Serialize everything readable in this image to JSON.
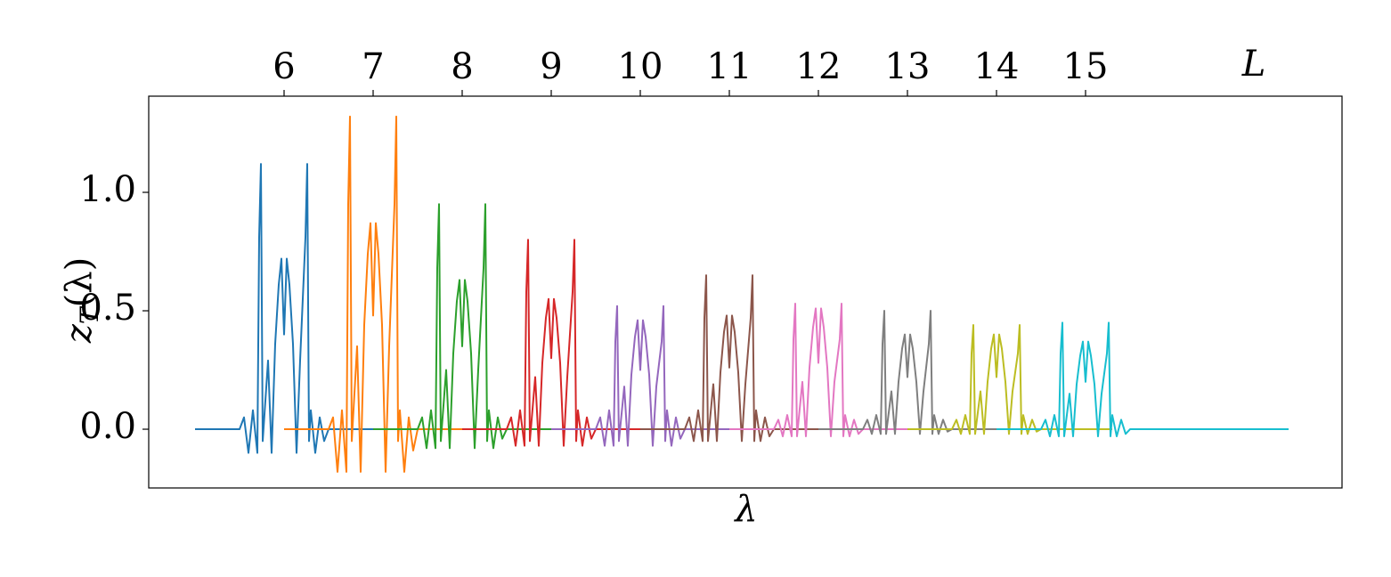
{
  "chart_data": {
    "type": "line",
    "x_label": "λ",
    "top_axis_label": "L",
    "ylabel": {
      "base": "z",
      "sub": "T",
      "rest": "(λ)"
    },
    "xlim": [
      4.48,
      17.88
    ],
    "xticks": [
      6,
      7,
      8,
      9,
      10,
      11,
      12,
      13,
      14,
      15
    ],
    "xtick_position": "top",
    "ylim": [
      -0.248,
      1.406
    ],
    "yticks": [
      {
        "value": 0,
        "label": "0.0"
      },
      0.5,
      {
        "value": 1,
        "label": "1.0"
      }
    ],
    "grid": false,
    "series": [
      {
        "color": "#1f77b4",
        "x": [
          5,
          5.5,
          5.55,
          5.6,
          5.65,
          5.7,
          5.72,
          5.74,
          5.76,
          5.82,
          5.86,
          5.9,
          5.94,
          5.97,
          6,
          6.03,
          6.06,
          6.1,
          6.14,
          6.18,
          6.24,
          6.26,
          6.28,
          6.3,
          6.35,
          6.4,
          6.45,
          6.5,
          7.3
        ],
        "values": [
          0,
          0,
          0.05,
          -0.1,
          0.08,
          -0.1,
          0.81,
          1.12,
          -0.05,
          0.29,
          -0.1,
          0.36,
          0.61,
          0.72,
          0.4,
          0.72,
          0.61,
          0.36,
          -0.1,
          0.29,
          0.81,
          1.12,
          -0.05,
          0.08,
          -0.1,
          0.05,
          -0.05,
          0,
          0
        ]
      },
      {
        "color": "#ff7f0e",
        "x": [
          6,
          6.5,
          6.55,
          6.6,
          6.65,
          6.7,
          6.72,
          6.74,
          6.76,
          6.82,
          6.86,
          6.9,
          6.94,
          6.97,
          7,
          7.03,
          7.06,
          7.1,
          7.14,
          7.18,
          7.24,
          7.26,
          7.28,
          7.3,
          7.35,
          7.4,
          7.45,
          7.5,
          8.3
        ],
        "values": [
          0,
          0,
          0.05,
          -0.18,
          0.08,
          -0.18,
          0.95,
          1.32,
          -0.05,
          0.35,
          -0.18,
          0.44,
          0.74,
          0.87,
          0.48,
          0.87,
          0.74,
          0.44,
          -0.18,
          0.35,
          0.95,
          1.32,
          -0.05,
          0.08,
          -0.18,
          0.05,
          -0.09,
          0,
          0
        ]
      },
      {
        "color": "#2ca02c",
        "x": [
          7,
          7.5,
          7.55,
          7.6,
          7.65,
          7.7,
          7.72,
          7.74,
          7.76,
          7.82,
          7.86,
          7.9,
          7.94,
          7.97,
          8,
          8.03,
          8.06,
          8.1,
          8.14,
          8.18,
          8.24,
          8.26,
          8.28,
          8.3,
          8.35,
          8.4,
          8.45,
          8.5,
          9.3
        ],
        "values": [
          0,
          0,
          0.05,
          -0.08,
          0.08,
          -0.08,
          0.68,
          0.95,
          -0.05,
          0.25,
          -0.08,
          0.32,
          0.54,
          0.63,
          0.35,
          0.63,
          0.54,
          0.32,
          -0.08,
          0.25,
          0.68,
          0.95,
          -0.05,
          0.08,
          -0.08,
          0.05,
          -0.04,
          0,
          0
        ]
      },
      {
        "color": "#d62728",
        "x": [
          8,
          8.5,
          8.55,
          8.6,
          8.65,
          8.7,
          8.72,
          8.74,
          8.76,
          8.82,
          8.86,
          8.9,
          8.94,
          8.97,
          9,
          9.03,
          9.06,
          9.1,
          9.14,
          9.18,
          9.24,
          9.26,
          9.28,
          9.3,
          9.35,
          9.4,
          9.45,
          9.5,
          10.3
        ],
        "values": [
          0,
          0,
          0.05,
          -0.07,
          0.08,
          -0.07,
          0.58,
          0.8,
          -0.05,
          0.22,
          -0.07,
          0.28,
          0.47,
          0.55,
          0.3,
          0.55,
          0.47,
          0.28,
          -0.07,
          0.22,
          0.58,
          0.8,
          -0.05,
          0.08,
          -0.07,
          0.05,
          -0.04,
          0,
          0
        ]
      },
      {
        "color": "#9467bd",
        "x": [
          9,
          9.5,
          9.55,
          9.6,
          9.65,
          9.7,
          9.72,
          9.74,
          9.76,
          9.82,
          9.86,
          9.9,
          9.94,
          9.97,
          10,
          10.03,
          10.06,
          10.1,
          10.14,
          10.18,
          10.24,
          10.26,
          10.28,
          10.3,
          10.35,
          10.4,
          10.45,
          10.5,
          11.3
        ],
        "values": [
          0,
          0,
          0.05,
          -0.07,
          0.08,
          -0.07,
          0.37,
          0.52,
          -0.05,
          0.18,
          -0.07,
          0.23,
          0.39,
          0.46,
          0.25,
          0.46,
          0.39,
          0.23,
          -0.07,
          0.18,
          0.37,
          0.52,
          -0.05,
          0.08,
          -0.07,
          0.05,
          -0.04,
          0,
          0
        ]
      },
      {
        "color": "#8c564b",
        "x": [
          10,
          10.5,
          10.55,
          10.6,
          10.65,
          10.7,
          10.72,
          10.74,
          10.76,
          10.82,
          10.86,
          10.9,
          10.94,
          10.97,
          11,
          11.03,
          11.06,
          11.1,
          11.14,
          11.18,
          11.24,
          11.26,
          11.28,
          11.3,
          11.35,
          11.4,
          11.45,
          11.5,
          12.3
        ],
        "values": [
          0,
          0,
          0.05,
          -0.05,
          0.08,
          -0.05,
          0.47,
          0.65,
          -0.05,
          0.19,
          -0.05,
          0.24,
          0.41,
          0.48,
          0.26,
          0.48,
          0.41,
          0.24,
          -0.05,
          0.19,
          0.47,
          0.65,
          -0.05,
          0.08,
          -0.05,
          0.05,
          -0.03,
          0,
          0
        ]
      },
      {
        "color": "#e377c2",
        "x": [
          11,
          11.5,
          11.55,
          11.6,
          11.65,
          11.7,
          11.72,
          11.74,
          11.76,
          11.82,
          11.86,
          11.9,
          11.94,
          11.97,
          12,
          12.03,
          12.06,
          12.1,
          12.14,
          12.18,
          12.24,
          12.26,
          12.28,
          12.3,
          12.35,
          12.4,
          12.45,
          12.5,
          13.3
        ],
        "values": [
          0,
          0,
          0.04,
          -0.03,
          0.06,
          -0.03,
          0.38,
          0.53,
          -0.03,
          0.2,
          -0.03,
          0.26,
          0.43,
          0.51,
          0.28,
          0.51,
          0.43,
          0.26,
          -0.03,
          0.2,
          0.38,
          0.53,
          -0.03,
          0.06,
          -0.03,
          0.04,
          -0.02,
          0,
          0
        ]
      },
      {
        "color": "#7f7f7f",
        "x": [
          12,
          12.5,
          12.55,
          12.6,
          12.65,
          12.7,
          12.72,
          12.74,
          12.76,
          12.82,
          12.86,
          12.9,
          12.94,
          12.97,
          13,
          13.03,
          13.06,
          13.1,
          13.14,
          13.18,
          13.24,
          13.26,
          13.28,
          13.3,
          13.35,
          13.4,
          13.45,
          13.5,
          14.3
        ],
        "values": [
          0,
          0,
          0.04,
          -0.02,
          0.06,
          -0.02,
          0.36,
          0.5,
          -0.02,
          0.16,
          -0.02,
          0.2,
          0.34,
          0.4,
          0.22,
          0.4,
          0.34,
          0.2,
          -0.02,
          0.16,
          0.36,
          0.5,
          -0.02,
          0.06,
          -0.02,
          0.04,
          -0.01,
          0,
          0
        ]
      },
      {
        "color": "#bcbd22",
        "x": [
          13,
          13.5,
          13.55,
          13.6,
          13.65,
          13.7,
          13.72,
          13.74,
          13.76,
          13.82,
          13.86,
          13.9,
          13.94,
          13.97,
          14,
          14.03,
          14.06,
          14.1,
          14.14,
          14.18,
          14.24,
          14.26,
          14.28,
          14.3,
          14.35,
          14.4,
          14.45,
          14.5,
          15.3
        ],
        "values": [
          0,
          0,
          0.04,
          -0.02,
          0.06,
          -0.02,
          0.32,
          0.44,
          -0.02,
          0.16,
          -0.02,
          0.2,
          0.34,
          0.4,
          0.22,
          0.4,
          0.34,
          0.2,
          -0.02,
          0.16,
          0.32,
          0.44,
          -0.02,
          0.06,
          -0.02,
          0.04,
          -0.01,
          0,
          0
        ]
      },
      {
        "color": "#17becf",
        "x": [
          14,
          14.5,
          14.55,
          14.6,
          14.65,
          14.7,
          14.72,
          14.74,
          14.76,
          14.82,
          14.86,
          14.9,
          14.94,
          14.97,
          15,
          15.03,
          15.06,
          15.1,
          15.14,
          15.18,
          15.24,
          15.26,
          15.28,
          15.3,
          15.35,
          15.4,
          15.45,
          15.5,
          17.28
        ],
        "values": [
          0,
          0,
          0.04,
          -0.03,
          0.06,
          -0.03,
          0.32,
          0.45,
          -0.03,
          0.15,
          -0.03,
          0.19,
          0.31,
          0.37,
          0.2,
          0.37,
          0.31,
          0.19,
          -0.03,
          0.15,
          0.32,
          0.45,
          -0.03,
          0.06,
          -0.03,
          0.04,
          -0.02,
          0,
          0
        ]
      }
    ]
  }
}
